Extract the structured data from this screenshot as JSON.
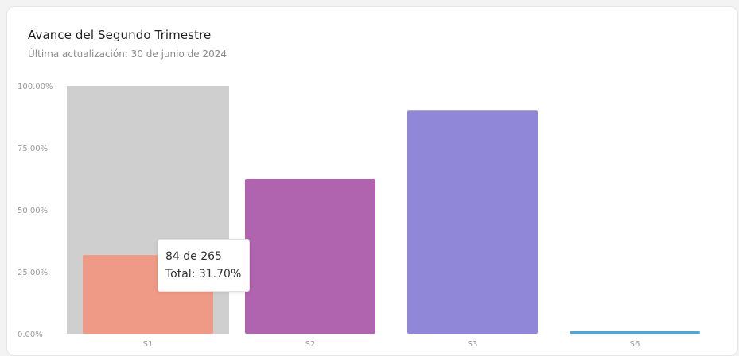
{
  "card": {
    "title": "Avance del Segundo Trimestre",
    "subtitle": "Última actualización: 30 de junio de 2024"
  },
  "tooltip": {
    "line1": "84 de 265",
    "line2": "Total: 31.70%"
  },
  "chart_data": {
    "type": "bar",
    "title": "Avance del Segundo Trimestre",
    "subtitle": "Última actualización: 30 de junio de 2024",
    "xlabel": "",
    "ylabel": "",
    "ylim": [
      0,
      100
    ],
    "ytick_labels": [
      "0.00%",
      "25.00%",
      "50.00%",
      "75.00%",
      "100.00%"
    ],
    "yticks": [
      0,
      25,
      50,
      75,
      100
    ],
    "categories": [
      "S1",
      "S2",
      "S3",
      "S6"
    ],
    "values": [
      31.7,
      62.5,
      90.0,
      1.0
    ],
    "colors": [
      "#ef9a86",
      "#b063ae",
      "#9087d9",
      "#4aa8d4"
    ],
    "hover_background": {
      "category": "S1",
      "color": "#cfcfcf"
    },
    "grid": false,
    "legend": "none"
  }
}
